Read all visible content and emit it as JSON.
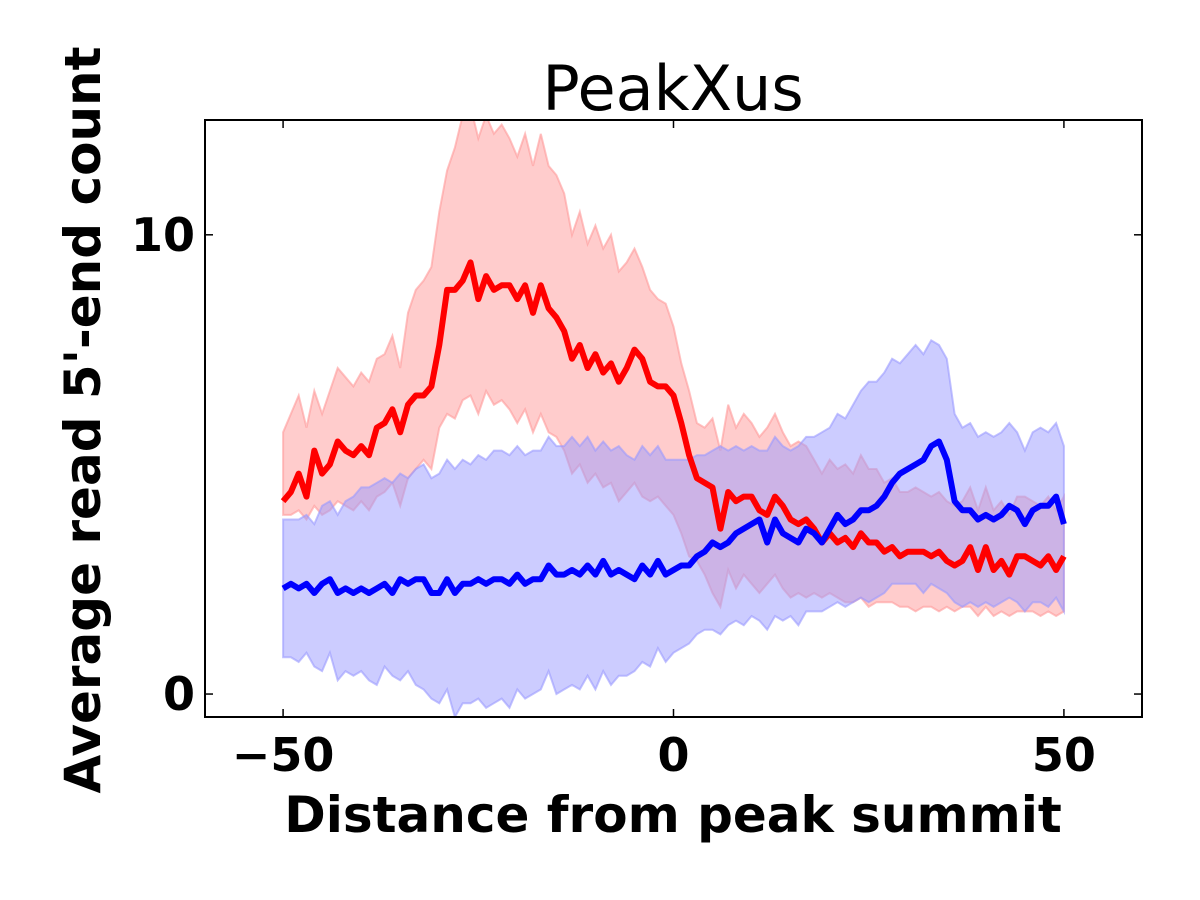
{
  "chart_data": {
    "type": "line",
    "title": "PeakXus",
    "xlabel": "Distance from peak summit",
    "ylabel": "Average read 5'-end count",
    "xlim": [
      -60,
      60
    ],
    "ylim": [
      -0.5,
      12.5
    ],
    "xticks": [
      -50,
      0,
      50
    ],
    "xtick_labels": [
      "−50",
      "0",
      "50"
    ],
    "yticks": [
      0,
      10
    ],
    "ytick_labels": [
      "0",
      "10"
    ],
    "grid": false,
    "legend": "none",
    "x": [
      -50,
      -49,
      -48,
      -47,
      -46,
      -45,
      -44,
      -43,
      -42,
      -41,
      -40,
      -39,
      -38,
      -37,
      -36,
      -35,
      -34,
      -33,
      -32,
      -31,
      -30,
      -29,
      -28,
      -27,
      -26,
      -25,
      -24,
      -23,
      -22,
      -21,
      -20,
      -19,
      -18,
      -17,
      -16,
      -15,
      -14,
      -13,
      -12,
      -11,
      -10,
      -9,
      -8,
      -7,
      -6,
      -5,
      -4,
      -3,
      -2,
      -1,
      0,
      1,
      2,
      3,
      4,
      5,
      6,
      7,
      8,
      9,
      10,
      11,
      12,
      13,
      14,
      15,
      16,
      17,
      18,
      19,
      20,
      21,
      22,
      23,
      24,
      25,
      26,
      27,
      28,
      29,
      30,
      31,
      32,
      33,
      34,
      35,
      36,
      37,
      38,
      39,
      40,
      41,
      42,
      43,
      44,
      45,
      46,
      47,
      48,
      49,
      50
    ],
    "series": [
      {
        "color": "#ff0000",
        "band_color": "#ff9999",
        "values": [
          4.2,
          4.4,
          4.8,
          4.3,
          5.3,
          4.8,
          5.0,
          5.5,
          5.3,
          5.2,
          5.4,
          5.2,
          5.8,
          5.9,
          6.2,
          5.7,
          6.3,
          6.5,
          6.5,
          6.7,
          7.6,
          8.8,
          8.8,
          9.0,
          9.4,
          8.6,
          9.1,
          8.8,
          8.9,
          8.9,
          8.6,
          8.9,
          8.3,
          8.9,
          8.4,
          8.2,
          7.9,
          7.3,
          7.6,
          7.1,
          7.4,
          7.0,
          7.2,
          6.8,
          7.1,
          7.5,
          7.3,
          6.8,
          6.7,
          6.7,
          6.5,
          5.9,
          5.2,
          4.7,
          4.6,
          4.5,
          3.6,
          4.4,
          4.2,
          4.3,
          4.3,
          4.0,
          3.9,
          4.3,
          4.1,
          3.8,
          3.7,
          3.8,
          3.6,
          3.3,
          3.5,
          3.3,
          3.4,
          3.2,
          3.5,
          3.3,
          3.3,
          3.1,
          3.2,
          3.0,
          3.1,
          3.1,
          3.1,
          3.0,
          3.1,
          2.9,
          2.8,
          2.9,
          3.2,
          2.7,
          3.2,
          2.7,
          2.9,
          2.6,
          3.0,
          3.0,
          2.9,
          2.8,
          3.0,
          2.7,
          3.0
        ],
        "upper": [
          5.7,
          6.1,
          6.5,
          5.8,
          6.6,
          6.1,
          6.6,
          7.1,
          6.9,
          6.7,
          7.0,
          6.8,
          7.3,
          7.4,
          7.8,
          7.1,
          8.3,
          8.8,
          9.0,
          9.3,
          10.5,
          11.4,
          11.9,
          12.6,
          12.8,
          12.1,
          12.6,
          12.2,
          12.4,
          12.1,
          11.7,
          12.2,
          11.5,
          12.2,
          11.5,
          11.3,
          10.9,
          10.0,
          10.5,
          9.8,
          10.2,
          9.7,
          10.0,
          9.2,
          9.4,
          9.7,
          9.3,
          8.8,
          8.6,
          8.5,
          8.0,
          7.2,
          6.6,
          5.9,
          5.8,
          6.0,
          5.3,
          6.3,
          5.8,
          6.1,
          5.9,
          5.6,
          5.8,
          6.1,
          5.7,
          5.4,
          5.5,
          5.4,
          5.1,
          4.8,
          5.1,
          4.9,
          5.0,
          4.8,
          5.2,
          4.9,
          4.9,
          4.6,
          4.7,
          4.4,
          4.4,
          4.5,
          4.4,
          4.3,
          4.4,
          4.2,
          4.1,
          4.2,
          4.5,
          4.0,
          4.5,
          4.0,
          4.2,
          3.9,
          4.3,
          4.3,
          4.2,
          4.1,
          4.3,
          4.0,
          4.3
        ],
        "lower": [
          3.9,
          3.9,
          4.0,
          3.8,
          4.1,
          3.9,
          4.0,
          4.2,
          4.1,
          4.0,
          4.2,
          4.0,
          4.3,
          4.4,
          4.6,
          4.1,
          4.7,
          4.9,
          5.1,
          4.9,
          5.8,
          6.1,
          6.0,
          6.4,
          6.5,
          6.1,
          6.6,
          6.3,
          6.4,
          6.2,
          5.9,
          6.2,
          5.7,
          6.1,
          5.7,
          5.6,
          5.3,
          4.8,
          5.0,
          4.6,
          4.8,
          4.5,
          4.6,
          4.2,
          4.4,
          4.6,
          4.3,
          4.2,
          4.3,
          4.1,
          3.9,
          3.5,
          3.0,
          2.9,
          2.6,
          2.2,
          1.9,
          2.7,
          2.3,
          2.6,
          2.4,
          2.2,
          2.4,
          2.6,
          2.3,
          2.1,
          2.2,
          2.1,
          2.2,
          2.1,
          2.2,
          2.1,
          2.0,
          2.0,
          2.1,
          1.9,
          2.0,
          2.0,
          2.0,
          1.9,
          1.9,
          1.8,
          1.9,
          1.9,
          1.8,
          1.9,
          1.8,
          1.9,
          1.9,
          1.7,
          1.9,
          1.7,
          1.8,
          1.7,
          1.8,
          1.8,
          1.8,
          1.7,
          1.8,
          1.7,
          1.8
        ]
      },
      {
        "color": "#0000ff",
        "band_color": "#9999ff",
        "values": [
          2.3,
          2.4,
          2.3,
          2.4,
          2.2,
          2.4,
          2.5,
          2.2,
          2.3,
          2.2,
          2.3,
          2.2,
          2.3,
          2.4,
          2.2,
          2.5,
          2.4,
          2.5,
          2.5,
          2.2,
          2.2,
          2.5,
          2.2,
          2.4,
          2.4,
          2.5,
          2.4,
          2.5,
          2.5,
          2.4,
          2.6,
          2.4,
          2.5,
          2.5,
          2.8,
          2.6,
          2.6,
          2.7,
          2.6,
          2.8,
          2.6,
          2.9,
          2.6,
          2.7,
          2.6,
          2.5,
          2.8,
          2.6,
          2.9,
          2.6,
          2.7,
          2.8,
          2.8,
          3.0,
          3.1,
          3.3,
          3.2,
          3.3,
          3.5,
          3.6,
          3.7,
          3.8,
          3.3,
          3.8,
          3.5,
          3.4,
          3.3,
          3.6,
          3.5,
          3.3,
          3.6,
          3.9,
          3.7,
          3.8,
          4.0,
          4.0,
          4.1,
          4.3,
          4.6,
          4.8,
          4.9,
          5.0,
          5.1,
          5.4,
          5.5,
          5.1,
          4.2,
          4.0,
          4.0,
          3.8,
          3.9,
          3.8,
          3.9,
          4.1,
          4.0,
          3.7,
          4.0,
          4.1,
          4.1,
          4.3,
          3.7
        ],
        "upper": [
          3.8,
          3.8,
          3.8,
          3.9,
          3.7,
          4.1,
          4.2,
          3.9,
          4.2,
          4.3,
          4.5,
          4.5,
          4.6,
          4.7,
          4.6,
          4.8,
          4.7,
          4.9,
          5.0,
          4.7,
          4.8,
          5.1,
          4.9,
          5.1,
          5.0,
          5.2,
          5.1,
          5.3,
          5.3,
          5.2,
          5.4,
          5.2,
          5.3,
          5.3,
          5.6,
          5.4,
          5.4,
          5.6,
          5.4,
          5.6,
          5.3,
          5.5,
          5.3,
          5.4,
          5.2,
          5.1,
          5.4,
          5.2,
          5.4,
          5.1,
          5.1,
          5.1,
          5.1,
          5.2,
          5.2,
          5.3,
          5.4,
          5.3,
          5.4,
          5.3,
          5.4,
          5.3,
          5.3,
          5.6,
          5.4,
          5.3,
          5.4,
          5.6,
          5.6,
          5.7,
          5.8,
          6.1,
          6.0,
          6.3,
          6.6,
          6.8,
          6.8,
          7.0,
          7.3,
          7.2,
          7.4,
          7.6,
          7.4,
          7.7,
          7.6,
          7.3,
          6.1,
          5.8,
          5.9,
          5.6,
          5.7,
          5.6,
          5.7,
          5.9,
          5.7,
          5.3,
          5.7,
          5.8,
          5.7,
          5.9,
          5.4
        ],
        "lower": [
          0.8,
          0.8,
          0.7,
          0.9,
          0.6,
          0.5,
          0.9,
          0.3,
          0.5,
          0.4,
          0.5,
          0.3,
          0.2,
          0.6,
          0.4,
          0.3,
          0.5,
          0.2,
          0.1,
          -0.1,
          -0.2,
          0.1,
          -0.5,
          -0.2,
          -0.2,
          -0.1,
          -0.3,
          -0.2,
          -0.1,
          -0.3,
          0.1,
          -0.1,
          0.0,
          0.1,
          0.5,
          0.0,
          0.1,
          0.2,
          0.1,
          0.4,
          0.1,
          0.5,
          0.2,
          0.4,
          0.4,
          0.5,
          0.7,
          0.6,
          1.0,
          0.7,
          0.9,
          1.0,
          1.1,
          1.3,
          1.4,
          1.4,
          1.3,
          1.5,
          1.6,
          1.5,
          1.7,
          1.6,
          1.4,
          1.7,
          1.6,
          1.7,
          1.5,
          1.8,
          1.8,
          1.8,
          1.9,
          2.0,
          1.9,
          2.0,
          2.1,
          2.0,
          2.1,
          2.2,
          2.4,
          2.4,
          2.4,
          2.4,
          2.2,
          2.4,
          2.3,
          2.2,
          2.0,
          1.9,
          2.0,
          1.9,
          2.0,
          1.9,
          2.0,
          2.1,
          2.0,
          1.8,
          2.0,
          2.0,
          1.9,
          2.1,
          1.8
        ]
      }
    ]
  }
}
